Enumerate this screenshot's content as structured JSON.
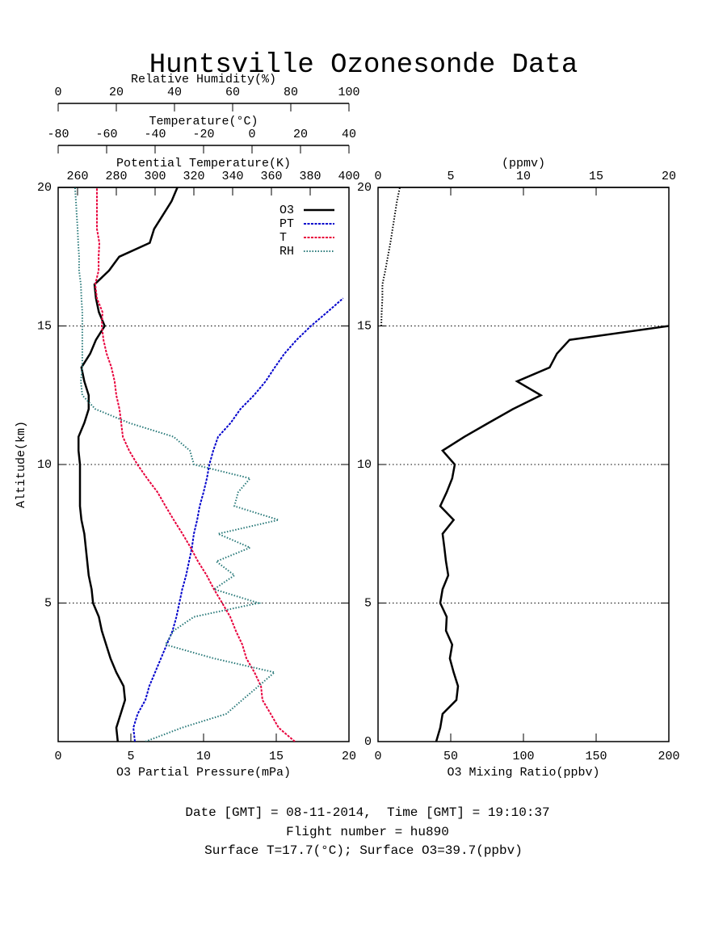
{
  "title": "Huntsville Ozonesonde Data",
  "footer": [
    "Date [GMT] = 08-11-2014,  Time [GMT] = 19:10:37",
    "Flight number = hu890",
    "Surface T=17.7(°C); Surface O3=39.7(ppbv)"
  ],
  "chart_data": [
    {
      "type": "line",
      "ylabel": "Altitude(km)",
      "ylim": [
        0,
        20
      ],
      "yticks": [
        5,
        10,
        15,
        20
      ],
      "grid": true,
      "xlabel": "O3 Partial Pressure(mPa)",
      "xlim": [
        0,
        20
      ],
      "xticks": [
        0,
        5,
        10,
        15,
        20
      ],
      "x2label": "Potential Temperature(K)",
      "x2lim": [
        250,
        400
      ],
      "x2ticks": [
        260,
        280,
        300,
        320,
        340,
        360,
        380,
        400
      ],
      "x3label": "Temperature(°C)",
      "x3lim": [
        -80,
        40
      ],
      "x3ticks": [
        -80,
        -60,
        -40,
        -20,
        0,
        20,
        40
      ],
      "x4label": "Relative Humidity(%)",
      "x4lim": [
        0,
        100
      ],
      "x4ticks": [
        0,
        20,
        40,
        60,
        80,
        100
      ],
      "legend": "upper right",
      "y": [
        0,
        0.5,
        1,
        1.5,
        2,
        2.5,
        3,
        3.5,
        4,
        4.5,
        5,
        5.5,
        6,
        6.5,
        7,
        7.5,
        8,
        8.5,
        9,
        9.5,
        10,
        10.5,
        11,
        11.5,
        12,
        12.5,
        13,
        13.5,
        14,
        14.5,
        15,
        15.5,
        16,
        16.5,
        17,
        17.5,
        18,
        18.5,
        19,
        19.5,
        20
      ],
      "series": [
        {
          "name": "O3",
          "color": "#000000",
          "axis": "x",
          "style": "solid",
          "values": [
            4.1,
            4.0,
            4.3,
            4.6,
            4.5,
            4.0,
            3.6,
            3.3,
            3.0,
            2.8,
            2.4,
            2.3,
            2.1,
            2.0,
            1.9,
            1.8,
            1.6,
            1.5,
            1.5,
            1.5,
            1.5,
            1.4,
            1.4,
            1.8,
            2.1,
            2.1,
            1.8,
            1.6,
            2.2,
            2.6,
            3.2,
            2.8,
            2.6,
            2.5,
            3.5,
            4.2,
            6.3,
            6.6,
            7.2,
            7.8,
            8.2
          ]
        },
        {
          "name": "PT",
          "color": "#0000cc",
          "axis": "x2",
          "style": "dashdot",
          "values": [
            289.6,
            288.8,
            291,
            295,
            297,
            300,
            303,
            306,
            309,
            311,
            312.5,
            314,
            316,
            317.5,
            319,
            320,
            321.7,
            323,
            325,
            326.7,
            328,
            330,
            332.5,
            339,
            344,
            351,
            357,
            361.7,
            366.7,
            373,
            380.4,
            388.8,
            397,
            null,
            null,
            null,
            null,
            null,
            null,
            null,
            null
          ]
        },
        {
          "name": "T",
          "color": "#e8003c",
          "axis": "x3",
          "style": "dashdot",
          "values": [
            17.7,
            11,
            7.7,
            4.3,
            3.7,
            1,
            -2.3,
            -4,
            -6.7,
            -9,
            -12.3,
            -15.7,
            -18.7,
            -22.3,
            -25.3,
            -28.7,
            -32.3,
            -35.7,
            -39,
            -43.3,
            -47.3,
            -50.7,
            -53.3,
            -54,
            -54.7,
            -56,
            -56.7,
            -58,
            -60,
            -61.3,
            -62,
            -61.7,
            -64,
            -64.7,
            -63.3,
            -63.3,
            -63,
            -64,
            -64,
            -64,
            -64
          ]
        },
        {
          "name": "RH",
          "color": "#2a7a7a",
          "axis": "x4",
          "style": "dotted",
          "values": [
            30,
            42.5,
            57.8,
            63.3,
            68.9,
            74.4,
            53.6,
            36.9,
            39.7,
            46.7,
            68.9,
            53.6,
            60.6,
            54.4,
            66,
            55,
            75.8,
            60.6,
            61.9,
            66,
            46.7,
            45.3,
            39.7,
            24.4,
            12.8,
            8.3,
            7.8,
            8.3,
            8.3,
            8.3,
            8.3,
            8.3,
            8,
            7.8,
            7.2,
            7.2,
            6.9,
            6.7,
            6.4,
            6.1,
            5.8
          ]
        }
      ]
    },
    {
      "type": "line",
      "ylim": [
        0,
        20
      ],
      "yticks": [
        0,
        5,
        10,
        15,
        20
      ],
      "grid": true,
      "xlabel": "O3 Mixing Ratio(ppbv)",
      "xlim": [
        0,
        200
      ],
      "xticks": [
        0,
        50,
        100,
        150,
        200
      ],
      "x2label": "(ppmv)",
      "x2lim": [
        0,
        20
      ],
      "x2ticks": [
        0,
        5,
        10,
        15,
        20
      ],
      "y": [
        0,
        0.5,
        1,
        1.5,
        2,
        2.5,
        3,
        3.5,
        4,
        4.5,
        5,
        5.5,
        6,
        6.5,
        7,
        7.5,
        8,
        8.5,
        9,
        9.5,
        10,
        10.5,
        11,
        11.5,
        12,
        12.5,
        13,
        13.5,
        14,
        14.5,
        15,
        15.5,
        16,
        16.5,
        17,
        17.5,
        18,
        18.5,
        19,
        19.5,
        20
      ],
      "series": [
        {
          "color": "#000000",
          "axis": "x",
          "style": "solid",
          "values": [
            40,
            42.8,
            44.4,
            53.9,
            55,
            52,
            49.4,
            51,
            46.7,
            47.2,
            42.8,
            44.4,
            48.3,
            46.7,
            45.6,
            44.4,
            52,
            42.8,
            47.2,
            51,
            52.8,
            44.4,
            59.4,
            76,
            92.8,
            112,
            95.6,
            118,
            123,
            131.7,
            200,
            null,
            null,
            null,
            null,
            null,
            null,
            null,
            null,
            null,
            null
          ]
        },
        {
          "color": "#000000",
          "axis": "x",
          "style": "dotted",
          "values": [
            null,
            null,
            null,
            null,
            null,
            null,
            null,
            null,
            null,
            null,
            null,
            null,
            null,
            null,
            null,
            null,
            null,
            null,
            null,
            null,
            null,
            null,
            null,
            null,
            null,
            null,
            null,
            null,
            null,
            null,
            2.2,
            2.5,
            3,
            3,
            5,
            6.7,
            8.5,
            10,
            11.5,
            13,
            15
          ]
        }
      ]
    }
  ]
}
